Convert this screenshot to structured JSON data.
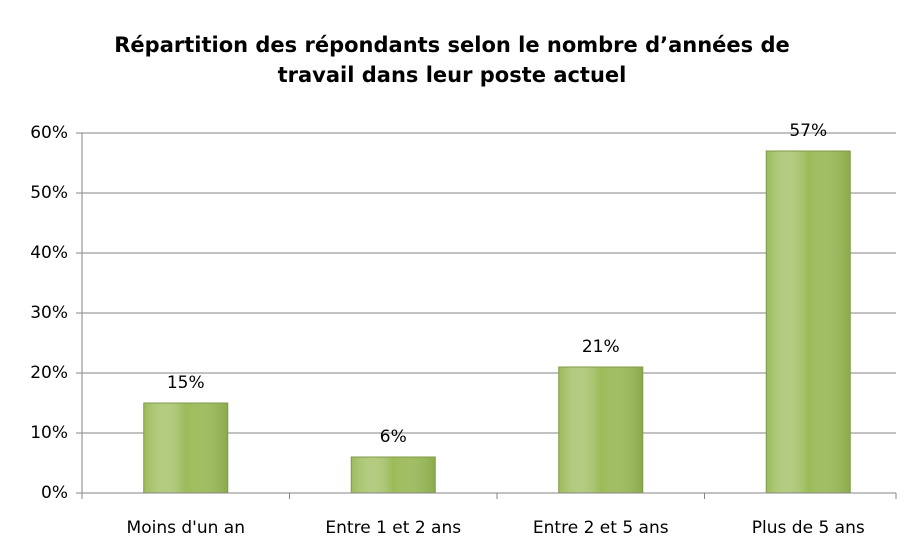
{
  "chart_data": {
    "type": "bar",
    "title": [
      "Répartition des répondants selon le nombre d’années de",
      "travail dans leur poste actuel"
    ],
    "categories": [
      "Moins d'un an",
      "Entre 1 et 2 ans",
      "Entre 2 et 5 ans",
      "Plus de 5 ans"
    ],
    "values": [
      15,
      6,
      21,
      57
    ],
    "value_labels": [
      "15%",
      "6%",
      "21%",
      "57%"
    ],
    "color": "#9bbb59",
    "ylim": [
      0,
      60
    ],
    "yticks": [
      {
        "value": 0,
        "label": "0%"
      },
      {
        "value": 10,
        "label": "10%"
      },
      {
        "value": 20,
        "label": "20%"
      },
      {
        "value": 30,
        "label": "30%"
      },
      {
        "value": 40,
        "label": "40%"
      },
      {
        "value": 50,
        "label": "50%"
      },
      {
        "value": 60,
        "label": "60%"
      }
    ],
    "grid": true
  }
}
